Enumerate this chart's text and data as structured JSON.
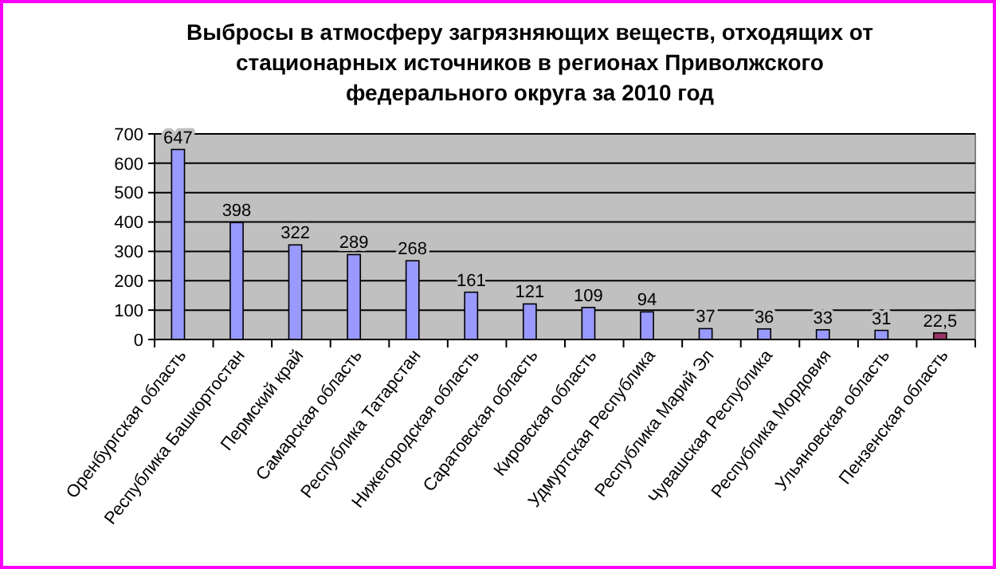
{
  "chart_data": {
    "type": "bar",
    "title": "Выбросы в атмосферу загрязняющих веществ, отходящих от стационарных источников в регионах Приволжского федерального округа за 2010 год",
    "categories": [
      "Оренбургская область",
      "Республика Башкортостан",
      "Пермский край",
      "Самарская область",
      "Республика Татарстан",
      "Нижегородская область",
      "Саратовская область",
      "Кировская область",
      "Удмуртская Республика",
      "Республика Марий Эл",
      "Чувашская Республика",
      "Республика Мордовия",
      "Ульяновская область",
      "Пензенская область"
    ],
    "values": [
      647,
      398,
      322,
      289,
      268,
      161,
      121,
      109,
      94,
      37,
      36,
      33,
      31,
      22.5
    ],
    "colors": [
      "#9999ff",
      "#9999ff",
      "#9999ff",
      "#9999ff",
      "#9999ff",
      "#9999ff",
      "#9999ff",
      "#9999ff",
      "#9999ff",
      "#9999ff",
      "#9999ff",
      "#9999ff",
      "#9999ff",
      "#993366"
    ],
    "value_labels": [
      "647",
      "398",
      "322",
      "289",
      "268",
      "161",
      "121",
      "109",
      "94",
      "37",
      "36",
      "33",
      "31",
      "22,5"
    ],
    "ylim": [
      0,
      700
    ],
    "yticks": [
      0,
      100,
      200,
      300,
      400,
      500,
      600,
      700
    ],
    "grid": "y"
  }
}
